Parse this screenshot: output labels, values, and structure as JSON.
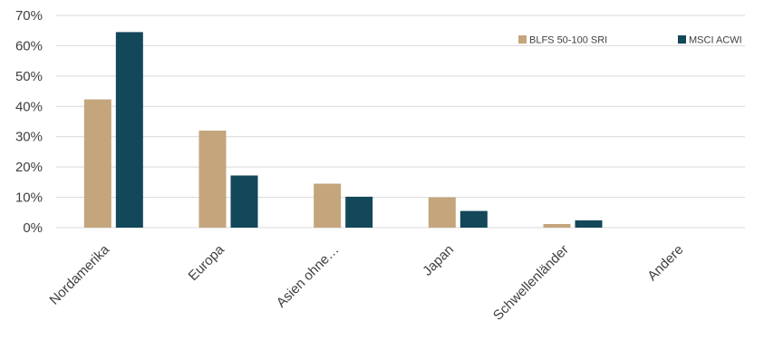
{
  "chart_data": {
    "type": "bar",
    "categories": [
      "Nordamerika",
      "Europa",
      "Asien ohne…",
      "Japan",
      "Schwellenländer",
      "Andere"
    ],
    "series": [
      {
        "name": "BLFS 50-100 SRI",
        "color": "#c4a57c",
        "values": [
          42.3,
          32.0,
          14.5,
          10.0,
          1.2,
          0.0
        ]
      },
      {
        "name": "MSCI ACWI",
        "color": "#13475a",
        "values": [
          64.5,
          17.2,
          10.2,
          5.5,
          2.4,
          0.0
        ]
      }
    ],
    "ylim": [
      0,
      70
    ],
    "yticks": [
      0,
      10,
      20,
      30,
      40,
      50,
      60,
      70
    ],
    "ytick_labels": [
      "0%",
      "10%",
      "20%",
      "30%",
      "40%",
      "50%",
      "60%",
      "70%"
    ],
    "grid": true,
    "legend_position": "top-right",
    "xlabel": "",
    "ylabel": "",
    "title": ""
  }
}
